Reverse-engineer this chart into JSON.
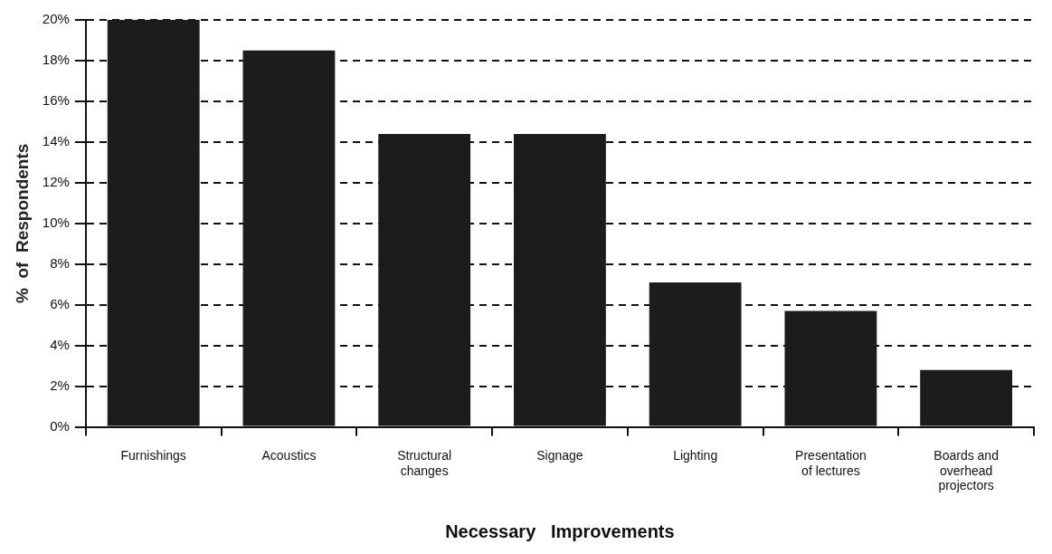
{
  "chart_data": {
    "type": "bar",
    "xlabel": "Necessary   Improvements",
    "ylabel": "%  of  Respondents",
    "categories": [
      "Furnishings",
      "Acoustics",
      "Structural changes",
      "Signage",
      "Lighting",
      "Presentation of lectures",
      "Boards and overhead projectors"
    ],
    "values": [
      20,
      18.5,
      14.4,
      14.4,
      7.1,
      5.7,
      2.8
    ],
    "color": "#1c1c1c",
    "ylim": [
      0,
      20
    ],
    "yticks": [
      {
        "value": 0,
        "label": "0%"
      },
      {
        "value": 2,
        "label": "2%"
      },
      {
        "value": 4,
        "label": "4%"
      },
      {
        "value": 6,
        "label": "6%"
      },
      {
        "value": 8,
        "label": "8%"
      },
      {
        "value": 10,
        "label": "10%"
      },
      {
        "value": 12,
        "label": "12%"
      },
      {
        "value": 14,
        "label": "14%"
      },
      {
        "value": 16,
        "label": "16%"
      },
      {
        "value": 18,
        "label": "18%"
      },
      {
        "value": 20,
        "label": "20%"
      }
    ],
    "grid": "y",
    "legend": false,
    "line_style": "dashed"
  }
}
